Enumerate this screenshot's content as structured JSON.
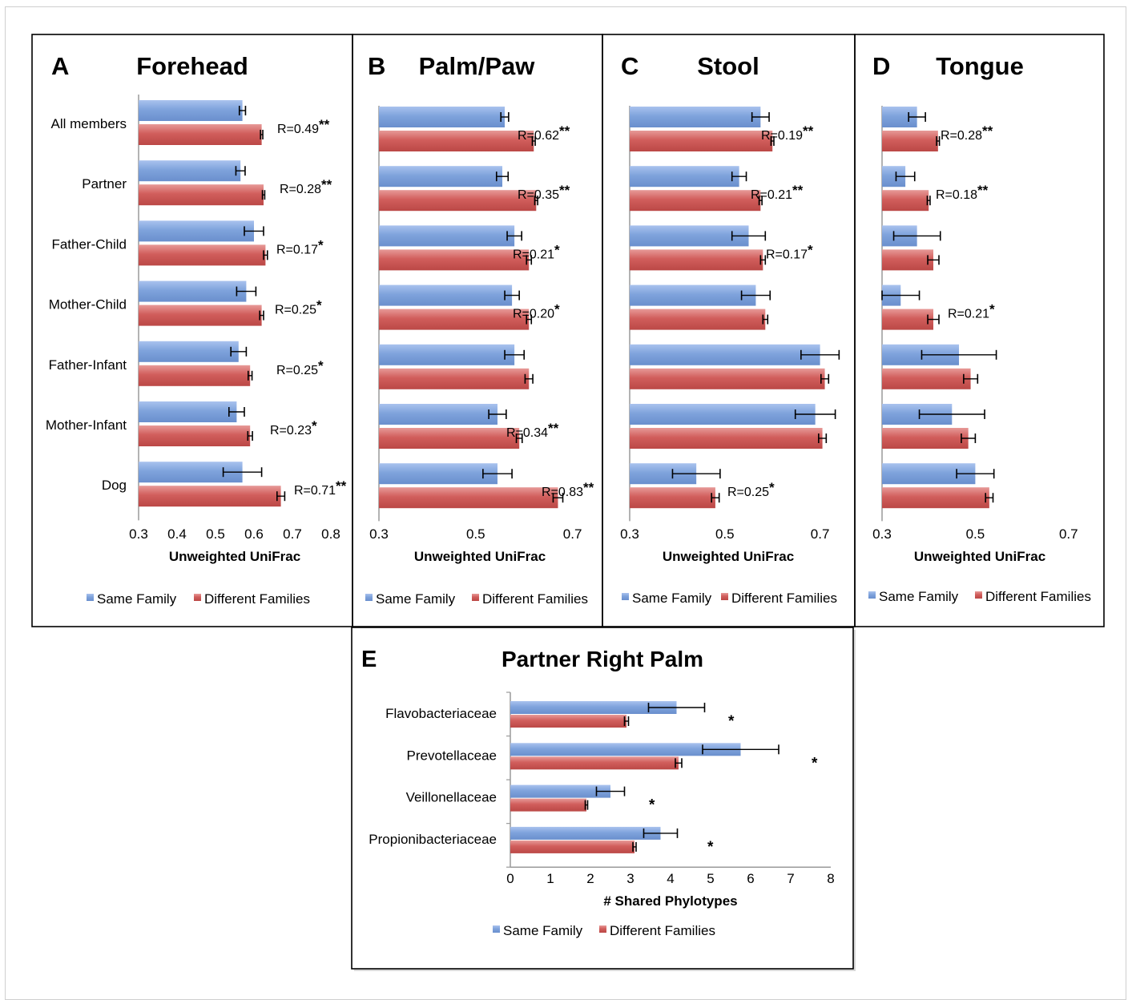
{
  "colors": {
    "same": "#7b9fd8",
    "different": "#cf5b5b",
    "axis": "#9a9a9a",
    "frame": "#000000"
  },
  "legend": {
    "same": "Same Family",
    "different": "Different Families"
  },
  "chart_data": [
    {
      "type": "bar",
      "panel": "A",
      "title": "Forehead",
      "orientation": "horizontal",
      "categories": [
        "All members",
        "Partner",
        "Father-Child",
        "Mother-Child",
        "Father-Infant",
        "Mother-Infant",
        "Dog"
      ],
      "series": [
        {
          "name": "Same Family",
          "values": [
            0.57,
            0.565,
            0.6,
            0.58,
            0.56,
            0.555,
            0.57
          ],
          "errors": [
            0.008,
            0.012,
            0.025,
            0.025,
            0.02,
            0.02,
            0.05
          ]
        },
        {
          "name": "Different Families",
          "values": [
            0.62,
            0.625,
            0.63,
            0.62,
            0.59,
            0.59,
            0.67
          ],
          "errors": [
            0.003,
            0.003,
            0.005,
            0.005,
            0.005,
            0.006,
            0.01
          ]
        }
      ],
      "annotations": [
        {
          "label": "R=0.49",
          "stars": "**"
        },
        {
          "label": "R=0.28",
          "stars": "**"
        },
        {
          "label": "R=0.17",
          "stars": "*"
        },
        {
          "label": "R=0.25",
          "stars": "*"
        },
        {
          "label": "R=0.25",
          "stars": "*"
        },
        {
          "label": "R=0.23",
          "stars": "*"
        },
        {
          "label": "R=0.71",
          "stars": "**"
        }
      ],
      "xlim": [
        0.3,
        0.8
      ],
      "xticks": [
        "0.3",
        "0.4",
        "0.5",
        "0.6",
        "0.7",
        "0.8"
      ],
      "xlabel": "Unweighted UniFrac"
    },
    {
      "type": "bar",
      "panel": "B",
      "title": "Palm/Paw",
      "orientation": "horizontal",
      "categories": [
        "All members",
        "Partner",
        "Father-Child",
        "Mother-Child",
        "Father-Infant",
        "Mother-Infant",
        "Dog"
      ],
      "series": [
        {
          "name": "Same Family",
          "values": [
            0.56,
            0.555,
            0.58,
            0.575,
            0.58,
            0.545,
            0.545
          ],
          "errors": [
            0.008,
            0.012,
            0.015,
            0.015,
            0.02,
            0.018,
            0.03
          ]
        },
        {
          "name": "Different Families",
          "values": [
            0.62,
            0.625,
            0.61,
            0.61,
            0.61,
            0.59,
            0.67
          ],
          "errors": [
            0.003,
            0.003,
            0.005,
            0.005,
            0.008,
            0.006,
            0.01
          ]
        }
      ],
      "annotations": [
        {
          "label": "R=0.62",
          "stars": "**"
        },
        {
          "label": "R=0.35",
          "stars": "**"
        },
        {
          "label": "R=0.21",
          "stars": "*"
        },
        {
          "label": "R=0.20",
          "stars": "*"
        },
        {
          "label": "",
          "stars": ""
        },
        {
          "label": "R=0.34",
          "stars": "**"
        },
        {
          "label": "R=0.83",
          "stars": "**"
        }
      ],
      "xlim": [
        0.3,
        0.8
      ],
      "xticks": [
        "0.3",
        "0.5",
        "0.7"
      ],
      "xlabel": "Unweighted UniFrac"
    },
    {
      "type": "bar",
      "panel": "C",
      "title": "Stool",
      "orientation": "horizontal",
      "categories": [
        "All members",
        "Partner",
        "Father-Child",
        "Mother-Child",
        "Father-Infant",
        "Mother-Infant",
        "Dog"
      ],
      "series": [
        {
          "name": "Same Family",
          "values": [
            0.575,
            0.53,
            0.55,
            0.565,
            0.7,
            0.69,
            0.44
          ],
          "errors": [
            0.018,
            0.015,
            0.035,
            0.03,
            0.04,
            0.042,
            0.05
          ]
        },
        {
          "name": "Different Families",
          "values": [
            0.6,
            0.575,
            0.58,
            0.585,
            0.71,
            0.705,
            0.48
          ],
          "errors": [
            0.003,
            0.003,
            0.005,
            0.005,
            0.008,
            0.008,
            0.008
          ]
        }
      ],
      "annotations": [
        {
          "label": "R=0.19",
          "stars": "**"
        },
        {
          "label": "R=0.21",
          "stars": "**"
        },
        {
          "label": "R=0.17",
          "stars": "*"
        },
        {
          "label": "",
          "stars": ""
        },
        {
          "label": "",
          "stars": ""
        },
        {
          "label": "",
          "stars": ""
        },
        {
          "label": "R=0.25",
          "stars": "*"
        }
      ],
      "xlim": [
        0.3,
        0.8
      ],
      "xticks": [
        "0.3",
        "0.5",
        "0.7"
      ],
      "xlabel": "Unweighted UniFrac"
    },
    {
      "type": "bar",
      "panel": "D",
      "title": "Tongue",
      "orientation": "horizontal",
      "categories": [
        "All members",
        "Partner",
        "Father-Child",
        "Mother-Child",
        "Father-Infant",
        "Mother-Infant",
        "Dog"
      ],
      "series": [
        {
          "name": "Same Family",
          "values": [
            0.375,
            0.35,
            0.375,
            0.34,
            0.465,
            0.45,
            0.5
          ],
          "errors": [
            0.018,
            0.02,
            0.05,
            0.04,
            0.08,
            0.07,
            0.04
          ]
        },
        {
          "name": "Different Families",
          "values": [
            0.42,
            0.4,
            0.41,
            0.41,
            0.49,
            0.485,
            0.53
          ],
          "errors": [
            0.003,
            0.003,
            0.012,
            0.012,
            0.015,
            0.015,
            0.008
          ]
        }
      ],
      "annotations": [
        {
          "label": "R=0.28",
          "stars": "**"
        },
        {
          "label": "R=0.18",
          "stars": "**"
        },
        {
          "label": "",
          "stars": ""
        },
        {
          "label": "R=0.21",
          "stars": "*"
        },
        {
          "label": "",
          "stars": ""
        },
        {
          "label": "",
          "stars": ""
        },
        {
          "label": "",
          "stars": ""
        }
      ],
      "xlim": [
        0.3,
        0.8
      ],
      "xticks": [
        "0.3",
        "0.5",
        "0.7"
      ],
      "xlabel": "Unweighted UniFrac"
    },
    {
      "type": "bar",
      "panel": "E",
      "title": "Partner Right Palm",
      "orientation": "horizontal",
      "categories": [
        "Flavobacteriaceae",
        "Prevotellaceae",
        "Veillonellaceae",
        "Propionibacteriaceae"
      ],
      "series": [
        {
          "name": "Same Family",
          "values": [
            4.15,
            5.75,
            2.5,
            3.75
          ],
          "errors": [
            0.7,
            0.95,
            0.35,
            0.42
          ]
        },
        {
          "name": "Different Families",
          "values": [
            2.9,
            4.2,
            1.9,
            3.1
          ],
          "errors": [
            0.05,
            0.08,
            0.03,
            0.04
          ]
        }
      ],
      "annotations": [
        {
          "label": "",
          "stars": "*"
        },
        {
          "label": "",
          "stars": "*"
        },
        {
          "label": "",
          "stars": "*"
        },
        {
          "label": "",
          "stars": "*"
        }
      ],
      "xlim": [
        0,
        8
      ],
      "xticks": [
        "0",
        "1",
        "2",
        "3",
        "4",
        "5",
        "6",
        "7",
        "8"
      ],
      "xlabel": "# Shared Phylotypes"
    }
  ]
}
